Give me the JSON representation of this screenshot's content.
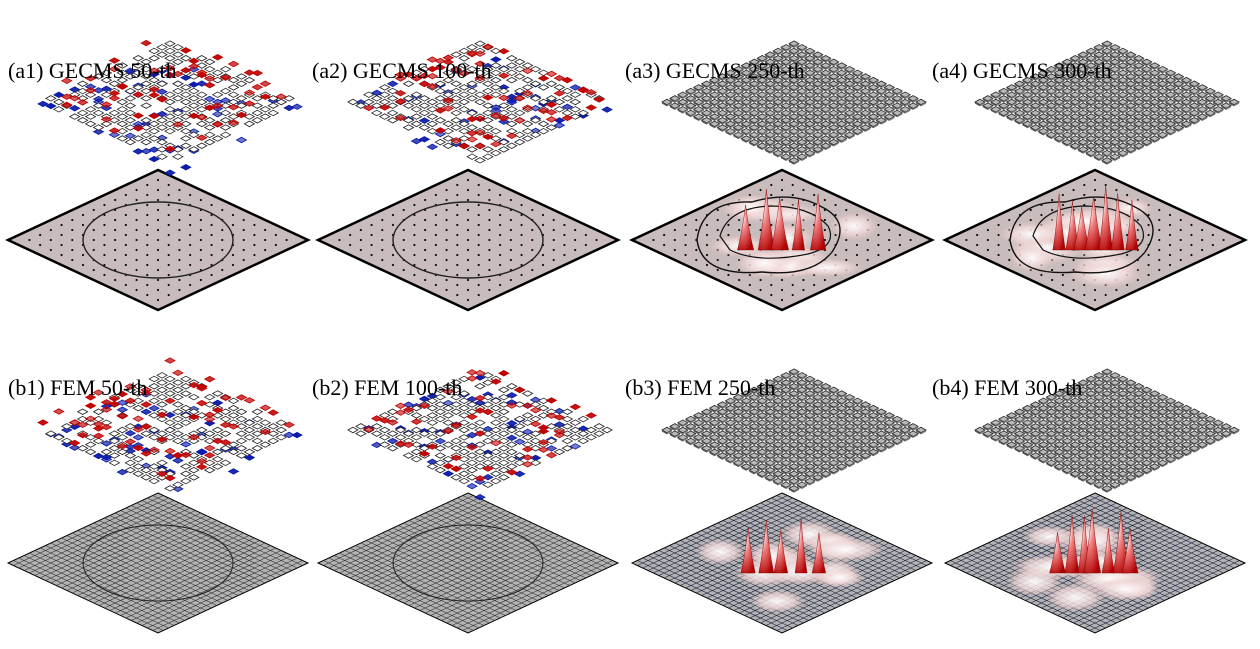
{
  "panels": [
    {
      "id": "a1",
      "label": "(a1) GECMS 50-th",
      "method": "GECMS",
      "iteration": 50,
      "state": "scattered",
      "surface": "plain-points"
    },
    {
      "id": "a2",
      "label": "(a2) GECMS 100-th",
      "method": "GECMS",
      "iteration": 100,
      "state": "scattered",
      "surface": "plain-points"
    },
    {
      "id": "a3",
      "label": "(a3) GECMS 250-th",
      "method": "GECMS",
      "iteration": 250,
      "state": "ordered",
      "surface": "peaks-points"
    },
    {
      "id": "a4",
      "label": "(a4) GECMS 300-th",
      "method": "GECMS",
      "iteration": 300,
      "state": "ordered",
      "surface": "peaks-points"
    },
    {
      "id": "b1",
      "label": "(b1) FEM 50-th",
      "method": "FEM",
      "iteration": 50,
      "state": "scattered",
      "surface": "plain-mesh"
    },
    {
      "id": "b2",
      "label": "(b2) FEM 100-th",
      "method": "FEM",
      "iteration": 100,
      "state": "scattered",
      "surface": "plain-mesh"
    },
    {
      "id": "b3",
      "label": "(b3) FEM 250-th",
      "method": "FEM",
      "iteration": 250,
      "state": "ordered",
      "surface": "peaks-mesh"
    },
    {
      "id": "b4",
      "label": "(b4) FEM 300-th",
      "method": "FEM",
      "iteration": 300,
      "state": "ordered",
      "surface": "peaks-mesh"
    }
  ],
  "colors": {
    "positive": "#c00000",
    "negative": "#0a1aa8",
    "neutral_fill": "#ffffff",
    "ordered_fill": "#b8b8b8",
    "outline": "#000000",
    "surface_plain": "#c9bcbc",
    "surface_mesh": "#b3b3b3",
    "peak": "#d40000"
  }
}
